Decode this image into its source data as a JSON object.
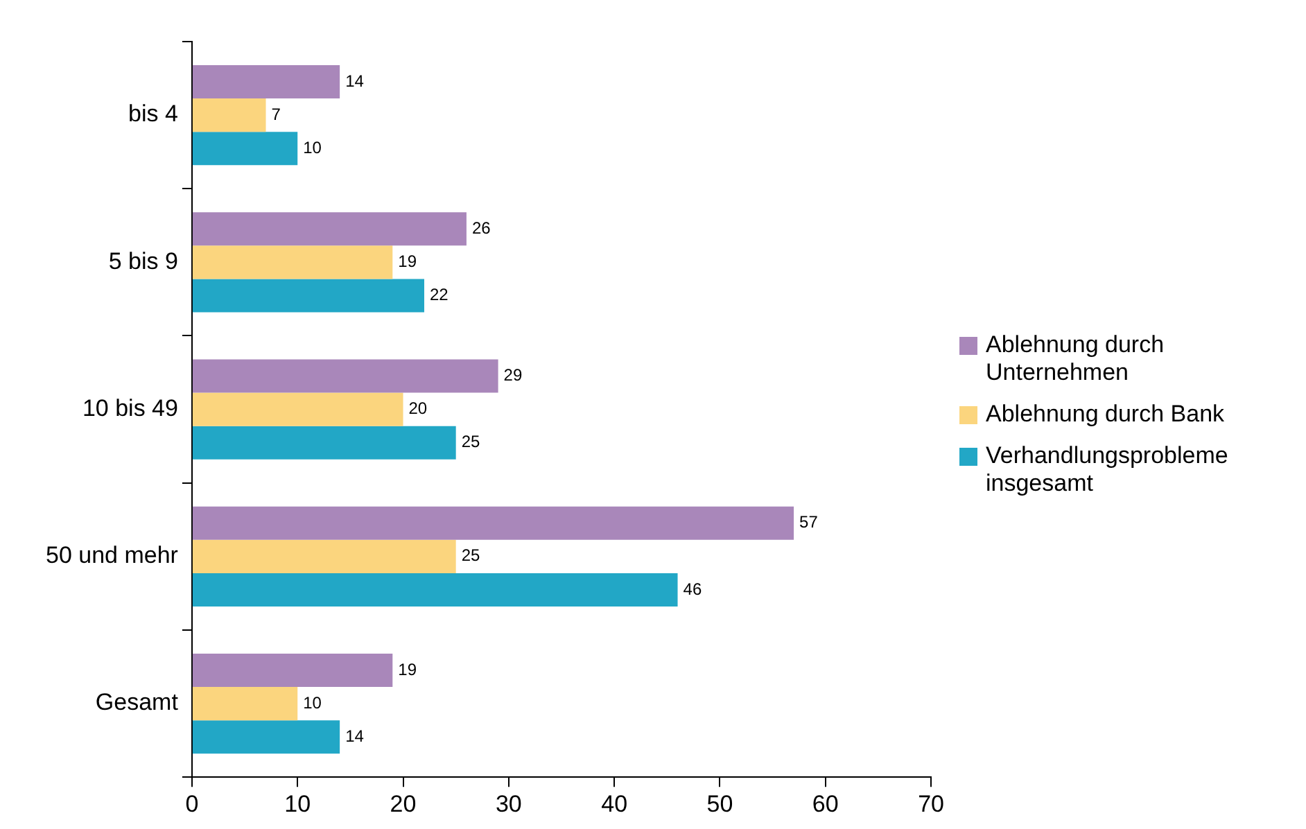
{
  "chart_data": {
    "type": "bar",
    "orientation": "horizontal",
    "categories": [
      "bis 4",
      "5 bis 9",
      "10 bis 49",
      "50 und mehr",
      "Gesamt"
    ],
    "series": [
      {
        "name": "Ablehnung durch Unternehmen",
        "color": "#a987ba",
        "values": [
          14,
          26,
          29,
          57,
          19
        ]
      },
      {
        "name": "Ablehnung durch Bank",
        "color": "#fbd57e",
        "values": [
          7,
          19,
          20,
          25,
          10
        ]
      },
      {
        "name": "Verhandlungsprobleme insgesamt",
        "color": "#22a7c6",
        "values": [
          10,
          22,
          25,
          46,
          14
        ]
      }
    ],
    "xlim": [
      0,
      70
    ],
    "xticks": [
      0,
      10,
      20,
      30,
      40,
      50,
      60,
      70
    ],
    "data_labels": true,
    "legend": "right"
  }
}
